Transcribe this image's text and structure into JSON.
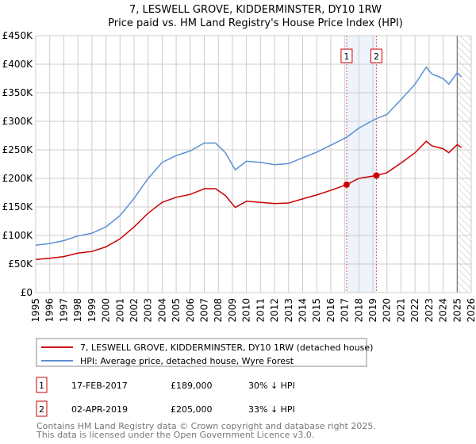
{
  "chart_data": {
    "type": "line",
    "title": "7, LESWELL GROVE, KIDDERMINSTER, DY10 1RW",
    "subtitle": "Price paid vs. HM Land Registry's House Price Index (HPI)",
    "xlim": [
      1995,
      2026
    ],
    "ylim": [
      0,
      450000
    ],
    "y_ticks": [
      {
        "v": 0,
        "label": "£0"
      },
      {
        "v": 50000,
        "label": "£50K"
      },
      {
        "v": 100000,
        "label": "£100K"
      },
      {
        "v": 150000,
        "label": "£150K"
      },
      {
        "v": 200000,
        "label": "£200K"
      },
      {
        "v": 250000,
        "label": "£250K"
      },
      {
        "v": 300000,
        "label": "£300K"
      },
      {
        "v": 350000,
        "label": "£350K"
      },
      {
        "v": 400000,
        "label": "£400K"
      },
      {
        "v": 450000,
        "label": "£450K"
      }
    ],
    "x_ticks": [
      "1995",
      "1996",
      "1997",
      "1998",
      "1999",
      "2000",
      "2001",
      "2002",
      "2003",
      "2004",
      "2005",
      "2006",
      "2007",
      "2008",
      "2009",
      "2010",
      "2011",
      "2012",
      "2013",
      "2014",
      "2015",
      "2016",
      "2017",
      "2018",
      "2019",
      "2020",
      "2021",
      "2022",
      "2023",
      "2024",
      "2025",
      "2026"
    ],
    "grid": true,
    "forecast_from": 2025.0,
    "series": [
      {
        "name": "7, LESWELL GROVE, KIDDERMINSTER, DY10 1RW (detached house)",
        "color": "#cc0000",
        "x": [
          1995,
          1996,
          1997,
          1998,
          1999,
          2000,
          2001,
          2002,
          2003,
          2004,
          2005,
          2006,
          2007,
          2007.8,
          2008.5,
          2009.2,
          2010,
          2011,
          2012,
          2013,
          2014,
          2015,
          2016,
          2017.13,
          2018,
          2019.25,
          2020,
          2021,
          2022,
          2022.8,
          2023.2,
          2024,
          2024.4,
          2025,
          2025.3
        ],
        "y": [
          58000,
          60000,
          63000,
          69000,
          72000,
          80000,
          94000,
          115000,
          139000,
          158000,
          167000,
          172000,
          182000,
          182000,
          170000,
          149000,
          160000,
          158000,
          156000,
          157000,
          164000,
          171000,
          179000,
          189000,
          200000,
          205000,
          210000,
          227000,
          245000,
          265000,
          257000,
          252000,
          245000,
          259000,
          254000
        ]
      },
      {
        "name": "HPI: Average price, detached house, Wyre Forest",
        "color": "#5b8fd4",
        "x": [
          1995,
          1996,
          1997,
          1998,
          1999,
          2000,
          2001,
          2002,
          2003,
          2004,
          2005,
          2006,
          2007,
          2007.8,
          2008.5,
          2009.2,
          2010,
          2011,
          2012,
          2013,
          2014,
          2015,
          2016,
          2017.13,
          2018,
          2019.25,
          2020,
          2021,
          2022,
          2022.8,
          2023.2,
          2024,
          2024.4,
          2025,
          2025.3
        ],
        "y": [
          83000,
          86000,
          91000,
          99000,
          104000,
          115000,
          135000,
          165000,
          200000,
          228000,
          240000,
          248000,
          262000,
          262000,
          245000,
          215000,
          230000,
          228000,
          224000,
          226000,
          236000,
          246000,
          258000,
          272000,
          288000,
          305000,
          312000,
          338000,
          365000,
          395000,
          383000,
          375000,
          365000,
          385000,
          378000
        ]
      }
    ],
    "sales": [
      {
        "label": "1",
        "x": 2017.13,
        "y": 189000,
        "date": "17-FEB-2017",
        "price": "£189,000",
        "hpi": "30% ↓ HPI"
      },
      {
        "label": "2",
        "x": 2019.25,
        "y": 205000,
        "date": "02-APR-2019",
        "price": "£205,000",
        "hpi": "33% ↓ HPI"
      }
    ],
    "footer": [
      "Contains HM Land Registry data © Crown copyright and database right 2025.",
      "This data is licensed under the Open Government Licence v3.0."
    ]
  }
}
